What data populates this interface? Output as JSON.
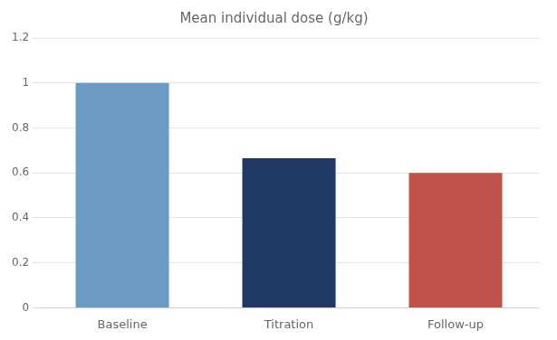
{
  "chart_data": {
    "type": "bar",
    "title": "Mean individual dose (g/kg)",
    "categories": [
      "Baseline",
      "Titration",
      "Follow-up"
    ],
    "values": [
      1.0,
      0.665,
      0.6
    ],
    "colors": [
      "#6b9ac4",
      "#1f3864",
      "#c0524a"
    ],
    "ylim": [
      0,
      1.2
    ],
    "yticks": [
      0,
      0.2,
      0.4,
      0.6,
      0.8,
      1,
      1.2
    ],
    "grid": true
  }
}
